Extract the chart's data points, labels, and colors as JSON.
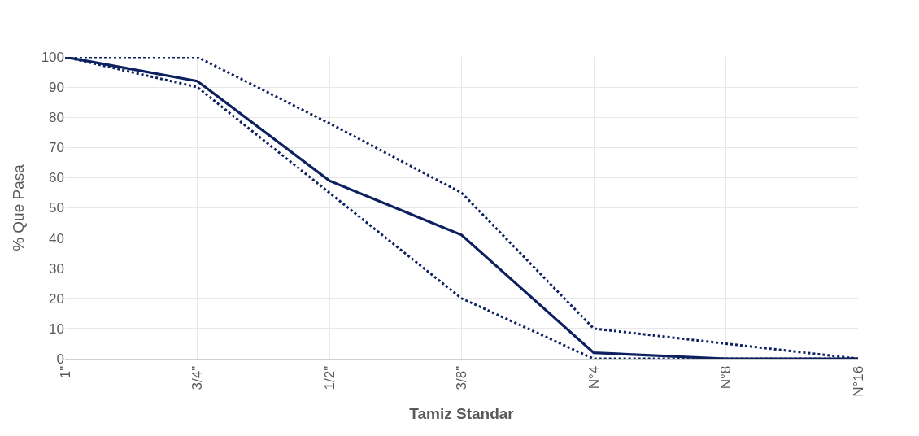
{
  "chart_data": {
    "type": "line",
    "xlabel": "Tamiz Standar",
    "ylabel": "% Que Pasa",
    "categories": [
      "1\"",
      "3/4\"",
      "1/2\"",
      "3/8\"",
      "N°4",
      "N°8",
      "N°16"
    ],
    "series": [
      {
        "color": "#0d2160",
        "line_style": "dotted",
        "values": [
          100,
          100,
          78,
          55,
          10,
          5,
          0
        ]
      },
      {
        "color": "#0d2160",
        "line_style": "solid",
        "values": [
          100,
          92,
          59,
          41,
          2,
          0,
          0
        ]
      },
      {
        "color": "#0d2160",
        "line_style": "dotted",
        "values": [
          100,
          90,
          55,
          20,
          0,
          0,
          0
        ]
      }
    ],
    "ylim": [
      0,
      100
    ],
    "yticks": [
      0,
      10,
      20,
      30,
      40,
      50,
      60,
      70,
      80,
      90,
      100
    ],
    "grid": true,
    "marker": "none"
  }
}
